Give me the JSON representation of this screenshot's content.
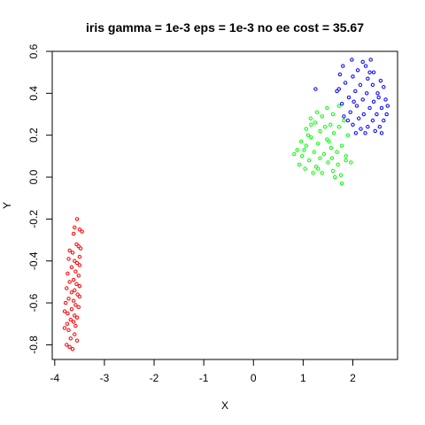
{
  "chart_data": {
    "type": "scatter",
    "title": "iris gamma = 1e-3 eps = 1e-3 no ee cost = 35.67",
    "xlabel": "X",
    "ylabel": "Y",
    "xlim": [
      -4.05,
      2.9
    ],
    "ylim": [
      -0.87,
      0.6
    ],
    "xticks": [
      -4,
      -3,
      -2,
      -1,
      0,
      1,
      2
    ],
    "yticks": [
      -0.8,
      -0.6,
      -0.4,
      -0.2,
      0.0,
      0.2,
      0.4,
      0.6
    ],
    "ytick_labels": [
      "-0.8",
      "-0.6",
      "-0.4",
      "-0.2",
      "0.0",
      "0.2",
      "0.4",
      "0.6"
    ],
    "grid": false,
    "legend": "none",
    "marker": "open-circle",
    "series": [
      {
        "color": "#ff0000",
        "points": [
          [
            -3.55,
            -0.2
          ],
          [
            -3.6,
            -0.24
          ],
          [
            -3.5,
            -0.25
          ],
          [
            -3.45,
            -0.26
          ],
          [
            -3.62,
            -0.27
          ],
          [
            -3.56,
            -0.32
          ],
          [
            -3.52,
            -0.33
          ],
          [
            -3.48,
            -0.34
          ],
          [
            -3.7,
            -0.35
          ],
          [
            -3.64,
            -0.36
          ],
          [
            -3.5,
            -0.38
          ],
          [
            -3.72,
            -0.39
          ],
          [
            -3.6,
            -0.4
          ],
          [
            -3.55,
            -0.41
          ],
          [
            -3.5,
            -0.42
          ],
          [
            -3.66,
            -0.43
          ],
          [
            -3.58,
            -0.45
          ],
          [
            -3.74,
            -0.46
          ],
          [
            -3.52,
            -0.47
          ],
          [
            -3.62,
            -0.49
          ],
          [
            -3.7,
            -0.5
          ],
          [
            -3.56,
            -0.51
          ],
          [
            -3.5,
            -0.52
          ],
          [
            -3.76,
            -0.53
          ],
          [
            -3.6,
            -0.54
          ],
          [
            -3.66,
            -0.55
          ],
          [
            -3.54,
            -0.56
          ],
          [
            -3.5,
            -0.57
          ],
          [
            -3.72,
            -0.58
          ],
          [
            -3.62,
            -0.59
          ],
          [
            -3.78,
            -0.6
          ],
          [
            -3.58,
            -0.61
          ],
          [
            -3.52,
            -0.62
          ],
          [
            -3.66,
            -0.63
          ],
          [
            -3.8,
            -0.64
          ],
          [
            -3.74,
            -0.65
          ],
          [
            -3.6,
            -0.66
          ],
          [
            -3.55,
            -0.67
          ],
          [
            -3.68,
            -0.68
          ],
          [
            -3.62,
            -0.69
          ],
          [
            -3.75,
            -0.7
          ],
          [
            -3.58,
            -0.71
          ],
          [
            -3.8,
            -0.72
          ],
          [
            -3.72,
            -0.73
          ],
          [
            -3.6,
            -0.75
          ],
          [
            -3.68,
            -0.77
          ],
          [
            -3.55,
            -0.78
          ],
          [
            -3.76,
            -0.8
          ],
          [
            -3.7,
            -0.81
          ],
          [
            -3.64,
            -0.82
          ]
        ]
      },
      {
        "color": "#00ff00",
        "points": [
          [
            1.72,
            0.34
          ],
          [
            1.48,
            0.33
          ],
          [
            1.28,
            0.31
          ],
          [
            1.6,
            0.3
          ],
          [
            1.15,
            0.28
          ],
          [
            1.38,
            0.29
          ],
          [
            1.82,
            0.27
          ],
          [
            1.24,
            0.26
          ],
          [
            1.55,
            0.25
          ],
          [
            1.72,
            0.24
          ],
          [
            1.06,
            0.23
          ],
          [
            1.34,
            0.22
          ],
          [
            1.62,
            0.21
          ],
          [
            1.9,
            0.2
          ],
          [
            1.16,
            0.19
          ],
          [
            1.48,
            0.18
          ],
          [
            0.96,
            0.17
          ],
          [
            1.3,
            0.16
          ],
          [
            1.78,
            0.15
          ],
          [
            1.06,
            0.15
          ],
          [
            1.56,
            0.14
          ],
          [
            0.88,
            0.13
          ],
          [
            1.22,
            0.12
          ],
          [
            1.42,
            0.11
          ],
          [
            1.68,
            0.12
          ],
          [
            0.98,
            0.1
          ],
          [
            1.34,
            0.09
          ],
          [
            1.86,
            0.08
          ],
          [
            1.12,
            0.08
          ],
          [
            1.5,
            0.07
          ],
          [
            0.82,
            0.11
          ],
          [
            1.7,
            0.06
          ],
          [
            1.26,
            0.05
          ],
          [
            1.04,
            0.04
          ],
          [
            1.96,
            0.07
          ],
          [
            1.6,
            0.03
          ],
          [
            1.38,
            0.02
          ],
          [
            1.76,
            0.01
          ],
          [
            1.2,
            0.02
          ],
          [
            0.92,
            0.06
          ],
          [
            1.52,
            0.17
          ],
          [
            1.1,
            0.2
          ],
          [
            1.44,
            0.24
          ],
          [
            1.86,
            0.1
          ],
          [
            1.64,
            0.0
          ],
          [
            1.78,
            -0.03
          ],
          [
            1.02,
            0.13
          ],
          [
            1.3,
            0.04
          ],
          [
            1.58,
            0.09
          ],
          [
            1.16,
            0.25
          ]
        ]
      },
      {
        "color": "#0000ff",
        "points": [
          [
            1.98,
            0.56
          ],
          [
            2.2,
            0.55
          ],
          [
            2.36,
            0.56
          ],
          [
            2.26,
            0.53
          ],
          [
            1.8,
            0.53
          ],
          [
            2.1,
            0.51
          ],
          [
            2.42,
            0.5
          ],
          [
            1.74,
            0.49
          ],
          [
            2.0,
            0.48
          ],
          [
            2.3,
            0.47
          ],
          [
            2.56,
            0.46
          ],
          [
            1.85,
            0.45
          ],
          [
            2.15,
            0.44
          ],
          [
            2.62,
            0.43
          ],
          [
            2.4,
            0.44
          ],
          [
            1.72,
            0.42
          ],
          [
            2.05,
            0.41
          ],
          [
            2.28,
            0.4
          ],
          [
            2.5,
            0.4
          ],
          [
            1.25,
            0.42
          ],
          [
            1.92,
            0.38
          ],
          [
            2.2,
            0.37
          ],
          [
            2.66,
            0.37
          ],
          [
            2.42,
            0.36
          ],
          [
            1.78,
            0.35
          ],
          [
            2.08,
            0.34
          ],
          [
            2.34,
            0.33
          ],
          [
            2.58,
            0.33
          ],
          [
            2.7,
            0.34
          ],
          [
            1.95,
            0.31
          ],
          [
            2.22,
            0.3
          ],
          [
            2.48,
            0.3
          ],
          [
            1.82,
            0.29
          ],
          [
            2.12,
            0.28
          ],
          [
            2.4,
            0.27
          ],
          [
            2.62,
            0.27
          ],
          [
            2.0,
            0.25
          ],
          [
            2.3,
            0.24
          ],
          [
            2.54,
            0.24
          ],
          [
            2.16,
            0.23
          ],
          [
            2.45,
            0.22
          ],
          [
            1.9,
            0.27
          ],
          [
            2.06,
            0.21
          ],
          [
            2.58,
            0.21
          ],
          [
            2.25,
            0.21
          ],
          [
            2.68,
            0.3
          ],
          [
            2.34,
            0.5
          ],
          [
            1.68,
            0.41
          ],
          [
            2.02,
            0.36
          ],
          [
            2.52,
            0.38
          ]
        ]
      }
    ]
  }
}
